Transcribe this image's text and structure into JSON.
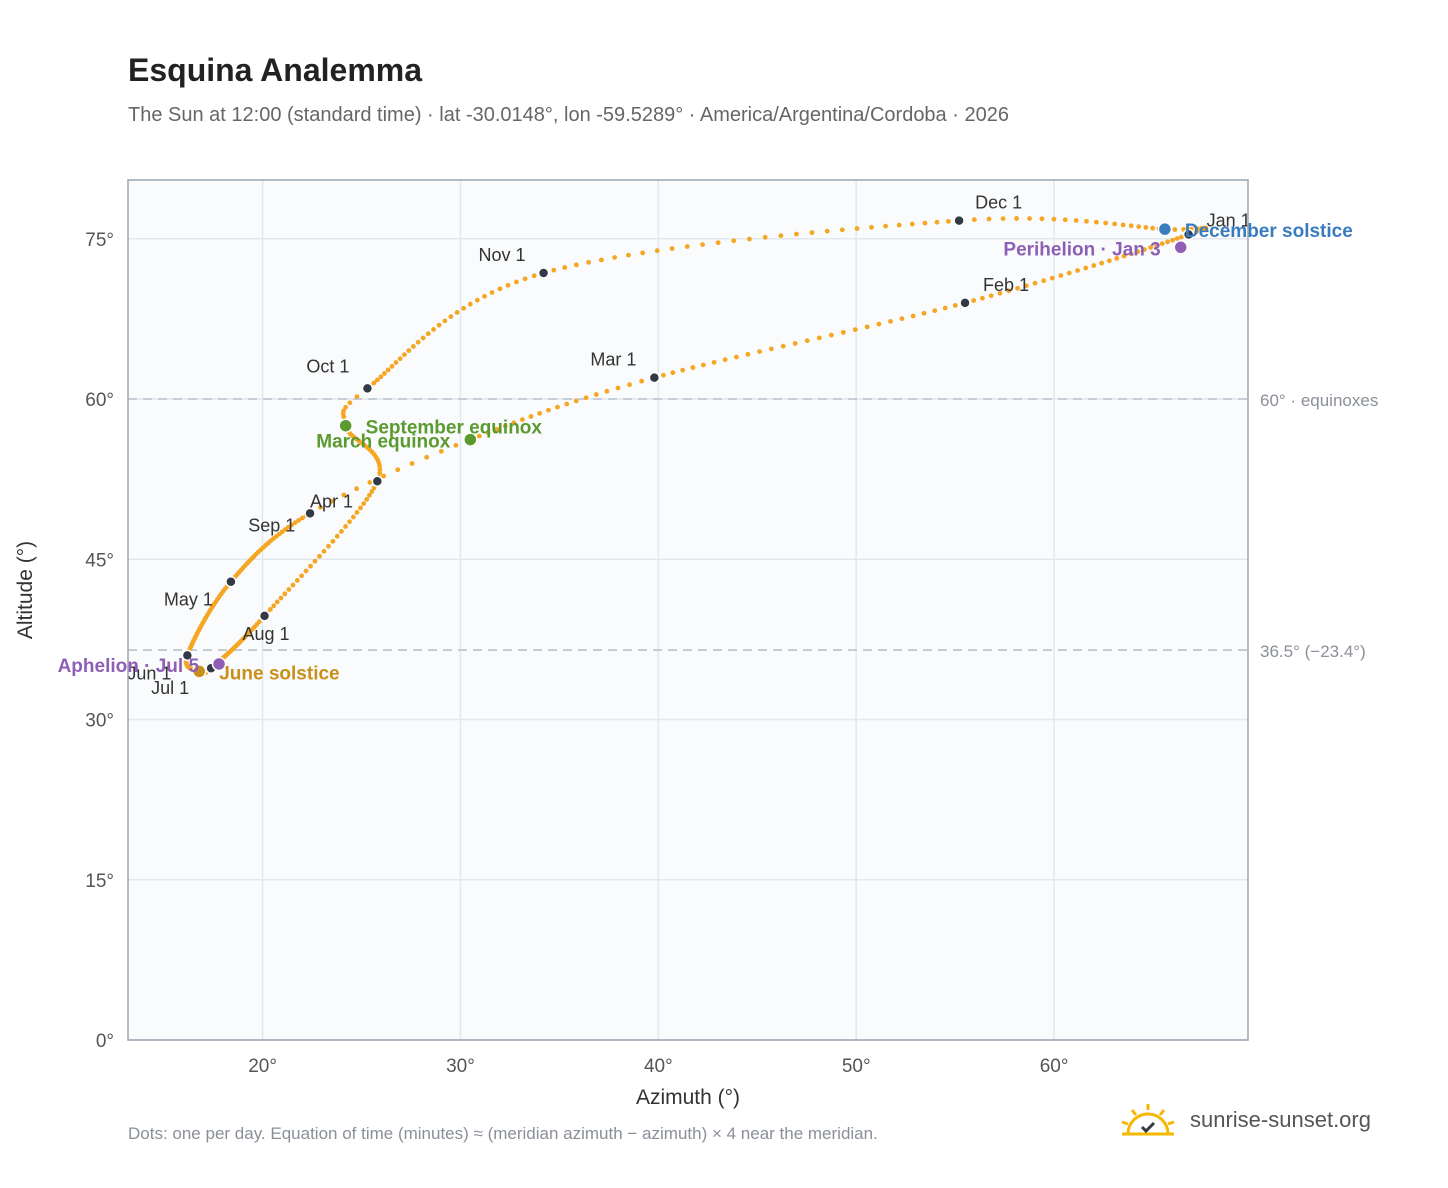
{
  "header": {
    "title": "Esquina Analemma",
    "subtitle": "The Sun at 12:00 (standard time) · lat -30.0148°, lon -59.5289° · America/Argentina/Cordoba · 2026"
  },
  "footer": {
    "note": "Dots: one per day. Equation of time (minutes) ≈ (meridian azimuth − azimuth) × 4 near the meridian.",
    "brand": "sunrise-sunset.org",
    "brand_icon": "sun-logo-icon"
  },
  "colors": {
    "curve": "#f5a623",
    "month_dot": "#333a45",
    "equinox": "#5a9a2e",
    "solstice_dec": "#3a7bbf",
    "solstice_jun": "#c9901a",
    "perihelion": "#8e5fb5",
    "plot_bg": "#f9fbfd",
    "grid": "#e3e8ee",
    "axis_frame": "#9aa5b1"
  },
  "chart_data": {
    "type": "scatter",
    "xlabel": "Azimuth (°)",
    "ylabel": "Altitude (°)",
    "xlim": [
      13.2,
      69.8
    ],
    "ylim": [
      0,
      80.5
    ],
    "xticks": [
      20,
      30,
      40,
      50,
      60
    ],
    "xtick_labels": [
      "20°",
      "30°",
      "40°",
      "50°",
      "60°"
    ],
    "yticks": [
      0,
      15,
      30,
      45,
      60,
      75
    ],
    "ytick_labels": [
      "0°",
      "15°",
      "30°",
      "45°",
      "60°",
      "75°"
    ],
    "grid": true,
    "reference_lines": [
      {
        "y": 60.0,
        "label": "60° · equinoxes"
      },
      {
        "y": 36.5,
        "label": "36.5° (−23.4°)"
      }
    ],
    "analemma_anchors": [
      {
        "day": 0,
        "az": 66.8,
        "alt": 75.4
      },
      {
        "day": 31,
        "az": 55.5,
        "alt": 69.0
      },
      {
        "day": 59,
        "az": 39.8,
        "alt": 62.0
      },
      {
        "day": 78,
        "az": 30.5,
        "alt": 56.2
      },
      {
        "day": 90,
        "az": 22.4,
        "alt": 49.3
      },
      {
        "day": 120,
        "az": 18.4,
        "alt": 42.9
      },
      {
        "day": 151,
        "az": 16.2,
        "alt": 36.0
      },
      {
        "day": 171,
        "az": 16.8,
        "alt": 34.5
      },
      {
        "day": 181,
        "az": 17.4,
        "alt": 34.8
      },
      {
        "day": 212,
        "az": 20.1,
        "alt": 39.7
      },
      {
        "day": 243,
        "az": 25.8,
        "alt": 52.3
      },
      {
        "day": 265,
        "az": 24.2,
        "alt": 57.5
      },
      {
        "day": 273,
        "az": 25.3,
        "alt": 61.0
      },
      {
        "day": 304,
        "az": 34.2,
        "alt": 71.8
      },
      {
        "day": 334,
        "az": 55.2,
        "alt": 76.7
      },
      {
        "day": 354,
        "az": 65.6,
        "alt": 75.9
      },
      {
        "day": 365,
        "az": 66.8,
        "alt": 75.4
      }
    ],
    "month_points": [
      {
        "label": "Jan 1",
        "az": 66.8,
        "alt": 75.4
      },
      {
        "label": "Feb 1",
        "az": 55.5,
        "alt": 69.0
      },
      {
        "label": "Mar 1",
        "az": 39.8,
        "alt": 62.0
      },
      {
        "label": "Apr 1",
        "az": 22.4,
        "alt": 49.3
      },
      {
        "label": "May 1",
        "az": 18.4,
        "alt": 42.9
      },
      {
        "label": "Jun 1",
        "az": 16.2,
        "alt": 36.0
      },
      {
        "label": "Jul 1",
        "az": 17.4,
        "alt": 34.8
      },
      {
        "label": "Aug 1",
        "az": 20.1,
        "alt": 39.7
      },
      {
        "label": "Sep 1",
        "az": 25.8,
        "alt": 52.3
      },
      {
        "label": "Oct 1",
        "az": 25.3,
        "alt": 61.0
      },
      {
        "label": "Nov 1",
        "az": 34.2,
        "alt": 71.8
      },
      {
        "label": "Dec 1",
        "az": 55.2,
        "alt": 76.7
      }
    ],
    "events": [
      {
        "label": "March equinox",
        "az": 30.5,
        "alt": 56.2,
        "color_key": "equinox"
      },
      {
        "label": "September equinox",
        "az": 24.2,
        "alt": 57.5,
        "color_key": "equinox"
      },
      {
        "label": "June solstice",
        "az": 16.8,
        "alt": 34.5,
        "color_key": "solstice_jun"
      },
      {
        "label": "December solstice",
        "az": 65.6,
        "alt": 75.9,
        "color_key": "solstice_dec"
      },
      {
        "label": "Perihelion · Jan 3",
        "az": 66.4,
        "alt": 74.2,
        "color_key": "perihelion"
      },
      {
        "label": "Aphelion · Jul 5",
        "az": 17.8,
        "alt": 35.2,
        "color_key": "perihelion"
      }
    ]
  }
}
